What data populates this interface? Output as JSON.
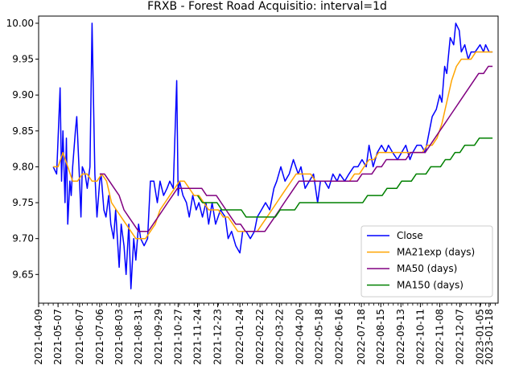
{
  "chart_data": {
    "type": "line",
    "title": "FRXB - Forest Road Acquisitio: interval=1d",
    "xlabel": "",
    "ylabel": "",
    "x_range": [
      "2021-04-09",
      "2023-01-31"
    ],
    "ylim": [
      9.61,
      10.01
    ],
    "grid": false,
    "legend_position": "lower-right",
    "x_tick_labels": [
      "2021-04-09",
      "2021-05-07",
      "2021-06-07",
      "2021-07-06",
      "2021-08-03",
      "2021-08-31",
      "2021-09-29",
      "2021-10-27",
      "2021-11-24",
      "2021-12-23",
      "2022-01-24",
      "2022-02-22",
      "2022-03-22",
      "2022-04-20",
      "2022-05-18",
      "2022-06-16",
      "2022-07-18",
      "2022-08-15",
      "2022-09-13",
      "2022-10-11",
      "2022-11-08",
      "2022-12-07",
      "2023-01-05",
      "2023-01-18"
    ],
    "y_ticks": [
      9.65,
      9.7,
      9.75,
      9.8,
      9.85,
      9.9,
      9.95,
      10.0
    ],
    "y_tick_labels": [
      "9.65",
      "9.70",
      "9.75",
      "9.80",
      "9.85",
      "9.90",
      "9.95",
      "10.00"
    ],
    "series": [
      {
        "name": "Close",
        "color": "#0000ff",
        "x": [
          "2021-04-30",
          "2021-05-05",
          "2021-05-07",
          "2021-05-10",
          "2021-05-12",
          "2021-05-14",
          "2021-05-17",
          "2021-05-19",
          "2021-05-21",
          "2021-05-24",
          "2021-05-26",
          "2021-05-28",
          "2021-06-01",
          "2021-06-03",
          "2021-06-07",
          "2021-06-09",
          "2021-06-11",
          "2021-06-15",
          "2021-06-18",
          "2021-06-22",
          "2021-06-25",
          "2021-06-29",
          "2021-07-02",
          "2021-07-06",
          "2021-07-08",
          "2021-07-12",
          "2021-07-15",
          "2021-07-19",
          "2021-07-22",
          "2021-07-26",
          "2021-07-29",
          "2021-08-03",
          "2021-08-06",
          "2021-08-10",
          "2021-08-13",
          "2021-08-17",
          "2021-08-20",
          "2021-08-24",
          "2021-08-27",
          "2021-08-31",
          "2021-09-03",
          "2021-09-08",
          "2021-09-13",
          "2021-09-17",
          "2021-09-22",
          "2021-09-27",
          "2021-10-01",
          "2021-10-06",
          "2021-10-11",
          "2021-10-15",
          "2021-10-20",
          "2021-10-25",
          "2021-10-27",
          "2021-10-29",
          "2021-11-03",
          "2021-11-08",
          "2021-11-12",
          "2021-11-17",
          "2021-11-22",
          "2021-11-26",
          "2021-12-01",
          "2021-12-06",
          "2021-12-10",
          "2021-12-15",
          "2021-12-20",
          "2021-12-27",
          "2022-01-03",
          "2022-01-07",
          "2022-01-12",
          "2022-01-18",
          "2022-01-24",
          "2022-01-28",
          "2022-02-02",
          "2022-02-08",
          "2022-02-14",
          "2022-02-18",
          "2022-02-24",
          "2022-03-02",
          "2022-03-08",
          "2022-03-14",
          "2022-03-18",
          "2022-03-24",
          "2022-03-30",
          "2022-04-05",
          "2022-04-11",
          "2022-04-18",
          "2022-04-22",
          "2022-04-28",
          "2022-05-04",
          "2022-05-10",
          "2022-05-16",
          "2022-05-20",
          "2022-05-26",
          "2022-06-01",
          "2022-06-07",
          "2022-06-13",
          "2022-06-17",
          "2022-06-24",
          "2022-06-30",
          "2022-07-07",
          "2022-07-13",
          "2022-07-19",
          "2022-07-25",
          "2022-07-29",
          "2022-08-04",
          "2022-08-10",
          "2022-08-16",
          "2022-08-22",
          "2022-08-26",
          "2022-09-01",
          "2022-09-08",
          "2022-09-14",
          "2022-09-20",
          "2022-09-26",
          "2022-09-30",
          "2022-10-06",
          "2022-10-12",
          "2022-10-18",
          "2022-10-24",
          "2022-10-28",
          "2022-11-03",
          "2022-11-08",
          "2022-11-11",
          "2022-11-15",
          "2022-11-18",
          "2022-11-23",
          "2022-11-28",
          "2022-12-01",
          "2022-12-06",
          "2022-12-09",
          "2022-12-14",
          "2022-12-19",
          "2022-12-23",
          "2022-12-29",
          "2023-01-05",
          "2023-01-10",
          "2023-01-13",
          "2023-01-18",
          "2023-01-23"
        ],
        "y": [
          9.8,
          9.79,
          9.84,
          9.91,
          9.78,
          9.85,
          9.75,
          9.84,
          9.72,
          9.78,
          9.76,
          9.8,
          9.85,
          9.87,
          9.78,
          9.73,
          9.8,
          9.79,
          9.77,
          9.8,
          10.0,
          9.79,
          9.73,
          9.78,
          9.79,
          9.74,
          9.73,
          9.76,
          9.72,
          9.7,
          9.74,
          9.66,
          9.72,
          9.69,
          9.65,
          9.72,
          9.63,
          9.7,
          9.67,
          9.72,
          9.7,
          9.69,
          9.7,
          9.78,
          9.78,
          9.75,
          9.78,
          9.76,
          9.77,
          9.78,
          9.77,
          9.92,
          9.76,
          9.78,
          9.76,
          9.75,
          9.73,
          9.76,
          9.74,
          9.75,
          9.73,
          9.75,
          9.72,
          9.75,
          9.72,
          9.74,
          9.73,
          9.7,
          9.71,
          9.69,
          9.68,
          9.71,
          9.71,
          9.7,
          9.71,
          9.73,
          9.74,
          9.75,
          9.74,
          9.77,
          9.78,
          9.8,
          9.78,
          9.79,
          9.81,
          9.79,
          9.8,
          9.77,
          9.78,
          9.79,
          9.75,
          9.78,
          9.78,
          9.77,
          9.79,
          9.78,
          9.79,
          9.78,
          9.79,
          9.8,
          9.8,
          9.81,
          9.8,
          9.83,
          9.8,
          9.82,
          9.83,
          9.82,
          9.83,
          9.82,
          9.81,
          9.82,
          9.83,
          9.81,
          9.82,
          9.83,
          9.83,
          9.82,
          9.85,
          9.87,
          9.88,
          9.9,
          9.89,
          9.94,
          9.93,
          9.98,
          9.97,
          10.0,
          9.99,
          9.96,
          9.97,
          9.95,
          9.96,
          9.96,
          9.97,
          9.96,
          9.97,
          9.96,
          9.96
        ],
        "line_width": 1.5
      },
      {
        "name": "MA21exp (days)",
        "color": "#ffa500",
        "x": [
          "2021-04-30",
          "2021-05-07",
          "2021-05-14",
          "2021-05-21",
          "2021-05-28",
          "2021-06-04",
          "2021-06-11",
          "2021-06-18",
          "2021-06-25",
          "2021-07-02",
          "2021-07-09",
          "2021-07-16",
          "2021-07-23",
          "2021-07-30",
          "2021-08-06",
          "2021-08-13",
          "2021-08-20",
          "2021-08-27",
          "2021-09-03",
          "2021-09-10",
          "2021-09-17",
          "2021-09-24",
          "2021-10-01",
          "2021-10-08",
          "2021-10-15",
          "2021-10-22",
          "2021-10-29",
          "2021-11-05",
          "2021-11-12",
          "2021-11-19",
          "2021-11-26",
          "2021-12-03",
          "2021-12-10",
          "2021-12-17",
          "2021-12-24",
          "2021-12-31",
          "2022-01-07",
          "2022-01-14",
          "2022-01-21",
          "2022-01-28",
          "2022-02-04",
          "2022-02-11",
          "2022-02-18",
          "2022-02-25",
          "2022-03-04",
          "2022-03-11",
          "2022-03-18",
          "2022-03-25",
          "2022-04-01",
          "2022-04-08",
          "2022-04-15",
          "2022-04-22",
          "2022-04-29",
          "2022-05-06",
          "2022-05-13",
          "2022-05-20",
          "2022-05-27",
          "2022-06-03",
          "2022-06-10",
          "2022-06-17",
          "2022-06-24",
          "2022-07-01",
          "2022-07-08",
          "2022-07-15",
          "2022-07-22",
          "2022-07-29",
          "2022-08-05",
          "2022-08-12",
          "2022-08-19",
          "2022-08-26",
          "2022-09-02",
          "2022-09-09",
          "2022-09-16",
          "2022-09-23",
          "2022-09-30",
          "2022-10-07",
          "2022-10-14",
          "2022-10-21",
          "2022-10-28",
          "2022-11-04",
          "2022-11-11",
          "2022-11-18",
          "2022-11-25",
          "2022-12-02",
          "2022-12-09",
          "2022-12-16",
          "2022-12-23",
          "2022-12-30",
          "2023-01-06",
          "2023-01-13",
          "2023-01-23"
        ],
        "y": [
          9.8,
          9.8,
          9.82,
          9.8,
          9.78,
          9.78,
          9.79,
          9.79,
          9.78,
          9.78,
          9.79,
          9.78,
          9.75,
          9.74,
          9.73,
          9.72,
          9.71,
          9.7,
          9.7,
          9.7,
          9.71,
          9.72,
          9.74,
          9.75,
          9.76,
          9.77,
          9.78,
          9.78,
          9.77,
          9.76,
          9.76,
          9.75,
          9.74,
          9.74,
          9.74,
          9.73,
          9.73,
          9.72,
          9.71,
          9.71,
          9.71,
          9.71,
          9.71,
          9.72,
          9.73,
          9.74,
          9.75,
          9.76,
          9.77,
          9.78,
          9.79,
          9.79,
          9.79,
          9.79,
          9.78,
          9.78,
          9.78,
          9.78,
          9.78,
          9.78,
          9.78,
          9.78,
          9.79,
          9.79,
          9.8,
          9.81,
          9.81,
          9.82,
          9.82,
          9.82,
          9.82,
          9.82,
          9.82,
          9.82,
          9.82,
          9.82,
          9.82,
          9.83,
          9.83,
          9.84,
          9.86,
          9.89,
          9.92,
          9.94,
          9.95,
          9.95,
          9.95,
          9.96,
          9.96,
          9.96,
          9.96
        ],
        "line_width": 1.5
      },
      {
        "name": "MA50 (days)",
        "color": "#800080",
        "x": [
          "2021-07-06",
          "2021-07-13",
          "2021-07-20",
          "2021-07-27",
          "2021-08-03",
          "2021-08-10",
          "2021-08-17",
          "2021-08-24",
          "2021-08-31",
          "2021-09-07",
          "2021-09-14",
          "2021-09-21",
          "2021-09-28",
          "2021-10-05",
          "2021-10-12",
          "2021-10-19",
          "2021-10-26",
          "2021-11-02",
          "2021-11-09",
          "2021-11-16",
          "2021-11-23",
          "2021-11-30",
          "2021-12-07",
          "2021-12-14",
          "2021-12-21",
          "2021-12-28",
          "2022-01-04",
          "2022-01-11",
          "2022-01-18",
          "2022-01-25",
          "2022-02-01",
          "2022-02-08",
          "2022-02-15",
          "2022-02-22",
          "2022-03-01",
          "2022-03-08",
          "2022-03-15",
          "2022-03-22",
          "2022-03-29",
          "2022-04-05",
          "2022-04-12",
          "2022-04-19",
          "2022-04-26",
          "2022-05-03",
          "2022-05-10",
          "2022-05-17",
          "2022-05-24",
          "2022-05-31",
          "2022-06-07",
          "2022-06-14",
          "2022-06-21",
          "2022-06-28",
          "2022-07-05",
          "2022-07-12",
          "2022-07-19",
          "2022-07-26",
          "2022-08-02",
          "2022-08-09",
          "2022-08-16",
          "2022-08-23",
          "2022-08-30",
          "2022-09-06",
          "2022-09-13",
          "2022-09-20",
          "2022-09-27",
          "2022-10-04",
          "2022-10-11",
          "2022-10-18",
          "2022-10-25",
          "2022-11-01",
          "2022-11-08",
          "2022-11-15",
          "2022-11-22",
          "2022-11-29",
          "2022-12-06",
          "2022-12-13",
          "2022-12-20",
          "2022-12-27",
          "2023-01-03",
          "2023-01-10",
          "2023-01-17",
          "2023-01-23"
        ],
        "y": [
          9.79,
          9.79,
          9.78,
          9.77,
          9.76,
          9.74,
          9.73,
          9.72,
          9.71,
          9.71,
          9.71,
          9.72,
          9.73,
          9.74,
          9.75,
          9.76,
          9.77,
          9.77,
          9.77,
          9.77,
          9.77,
          9.77,
          9.76,
          9.76,
          9.76,
          9.75,
          9.74,
          9.73,
          9.72,
          9.72,
          9.71,
          9.71,
          9.71,
          9.71,
          9.71,
          9.72,
          9.73,
          9.74,
          9.75,
          9.76,
          9.77,
          9.78,
          9.78,
          9.78,
          9.78,
          9.78,
          9.78,
          9.78,
          9.78,
          9.78,
          9.78,
          9.78,
          9.78,
          9.78,
          9.79,
          9.79,
          9.79,
          9.8,
          9.8,
          9.81,
          9.81,
          9.81,
          9.81,
          9.81,
          9.82,
          9.82,
          9.82,
          9.82,
          9.83,
          9.84,
          9.85,
          9.86,
          9.87,
          9.88,
          9.89,
          9.9,
          9.91,
          9.92,
          9.93,
          9.93,
          9.94,
          9.94
        ],
        "line_width": 1.5
      },
      {
        "name": "MA150 (days)",
        "color": "#008000",
        "x": [
          "2021-11-24",
          "2021-12-01",
          "2021-12-08",
          "2021-12-15",
          "2021-12-22",
          "2021-12-29",
          "2022-01-05",
          "2022-01-12",
          "2022-01-19",
          "2022-01-26",
          "2022-02-02",
          "2022-02-09",
          "2022-02-16",
          "2022-02-23",
          "2022-03-02",
          "2022-03-09",
          "2022-03-16",
          "2022-03-23",
          "2022-03-30",
          "2022-04-06",
          "2022-04-13",
          "2022-04-20",
          "2022-04-27",
          "2022-05-04",
          "2022-05-11",
          "2022-05-18",
          "2022-05-25",
          "2022-06-01",
          "2022-06-08",
          "2022-06-15",
          "2022-06-22",
          "2022-06-29",
          "2022-07-06",
          "2022-07-13",
          "2022-07-20",
          "2022-07-27",
          "2022-08-03",
          "2022-08-10",
          "2022-08-17",
          "2022-08-24",
          "2022-08-31",
          "2022-09-07",
          "2022-09-14",
          "2022-09-21",
          "2022-09-28",
          "2022-10-05",
          "2022-10-12",
          "2022-10-19",
          "2022-10-26",
          "2022-11-02",
          "2022-11-09",
          "2022-11-16",
          "2022-11-23",
          "2022-11-30",
          "2022-12-07",
          "2022-12-14",
          "2022-12-21",
          "2022-12-28",
          "2023-01-04",
          "2023-01-11",
          "2023-01-18",
          "2023-01-23"
        ],
        "y": [
          9.76,
          9.75,
          9.75,
          9.75,
          9.75,
          9.74,
          9.74,
          9.74,
          9.74,
          9.74,
          9.73,
          9.73,
          9.73,
          9.73,
          9.73,
          9.73,
          9.73,
          9.74,
          9.74,
          9.74,
          9.74,
          9.75,
          9.75,
          9.75,
          9.75,
          9.75,
          9.75,
          9.75,
          9.75,
          9.75,
          9.75,
          9.75,
          9.75,
          9.75,
          9.75,
          9.76,
          9.76,
          9.76,
          9.76,
          9.77,
          9.77,
          9.77,
          9.78,
          9.78,
          9.78,
          9.79,
          9.79,
          9.79,
          9.8,
          9.8,
          9.8,
          9.81,
          9.81,
          9.82,
          9.82,
          9.83,
          9.83,
          9.83,
          9.84,
          9.84,
          9.84,
          9.84
        ],
        "line_width": 1.5
      }
    ]
  }
}
